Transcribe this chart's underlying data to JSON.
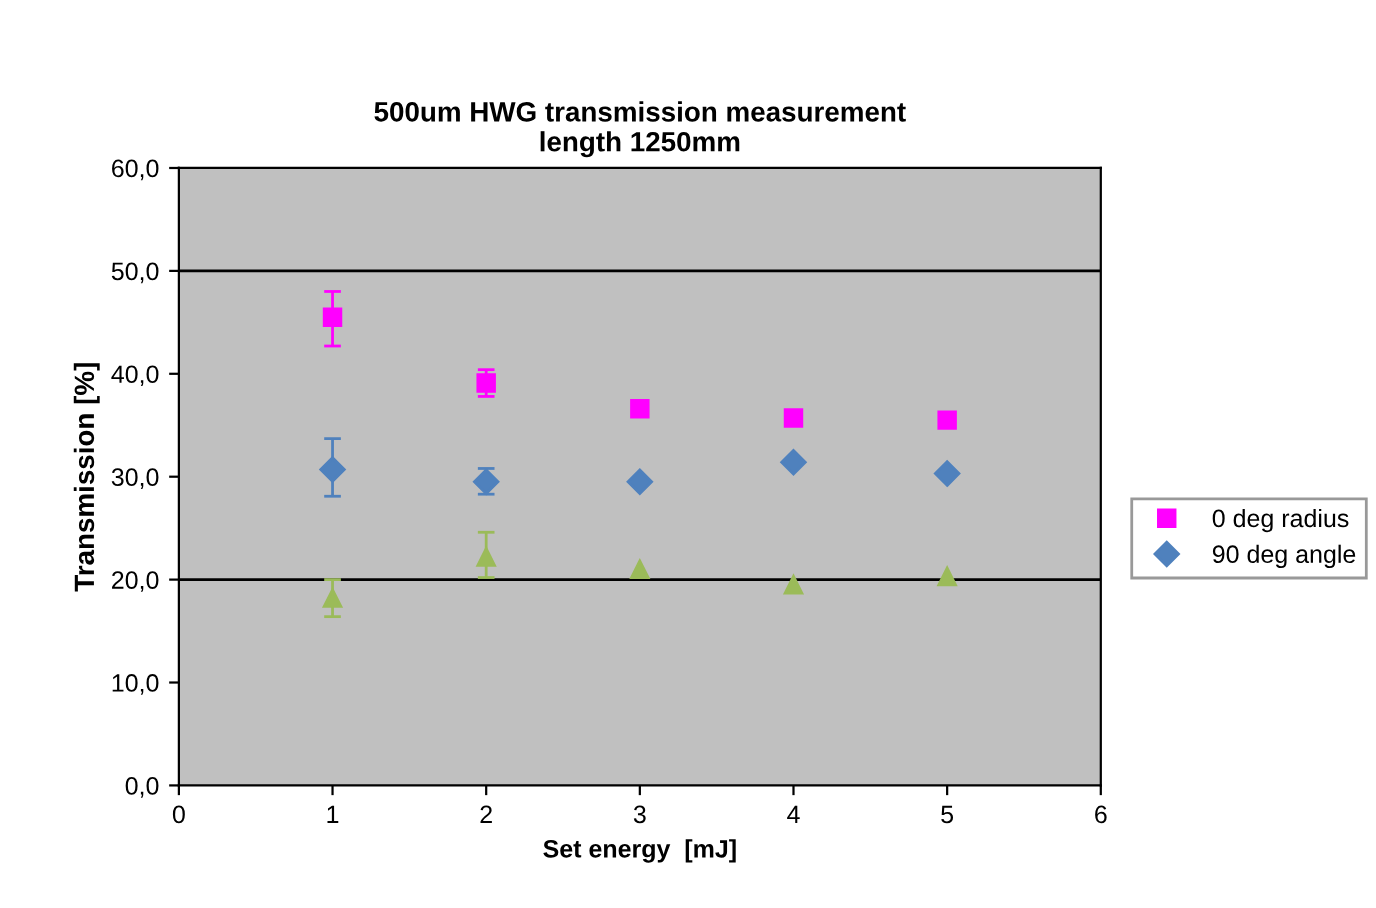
{
  "chart_data": {
    "type": "scatter",
    "title": "500um HWG transmission measurement\nlength 1250mm",
    "xlabel": "Set energy  [mJ]",
    "ylabel": "Transmission [%]",
    "x": [
      1,
      2,
      3,
      4,
      5
    ],
    "series": [
      {
        "name": "0 deg radius",
        "color": "#ff00ff",
        "marker": "square",
        "values": [
          45.5,
          39.1,
          36.6,
          35.7,
          35.5
        ],
        "errors": [
          [
            42.7,
            48.0
          ],
          [
            37.8,
            40.4
          ],
          null,
          null,
          null
        ]
      },
      {
        "name": "90 deg angle",
        "color": "#4f81bd",
        "marker": "diamond",
        "values": [
          30.7,
          29.5,
          29.5,
          31.4,
          30.3
        ],
        "errors": [
          [
            28.1,
            33.7
          ],
          [
            28.3,
            30.8
          ],
          null,
          null,
          null
        ]
      },
      {
        "color": "#9bbb59",
        "marker": "triangle",
        "values": [
          18.2,
          22.2,
          21.0,
          19.5,
          20.3
        ],
        "errors": [
          1.8,
          [
            20.2,
            24.6
          ],
          null,
          null,
          null
        ]
      }
    ],
    "xlim": [
      0,
      6
    ],
    "xticks": [
      0,
      1,
      2,
      3,
      4,
      5,
      6
    ],
    "ylim": [
      0,
      60
    ],
    "yticks": [
      {
        "value": 0,
        "label": "0,0"
      },
      {
        "value": 10,
        "label": "10,0"
      },
      {
        "value": 20,
        "label": "20,0"
      },
      {
        "value": 30,
        "label": "30,0"
      },
      {
        "value": 40,
        "label": "40,0"
      },
      {
        "value": 50,
        "label": "50,0"
      },
      {
        "value": 60,
        "label": "60,0"
      }
    ],
    "ref_lines": [
      {
        "axis": "y",
        "value": 20,
        "color": "#000000"
      },
      {
        "axis": "y",
        "value": 50,
        "color": "#000000"
      }
    ],
    "legend": "right"
  }
}
